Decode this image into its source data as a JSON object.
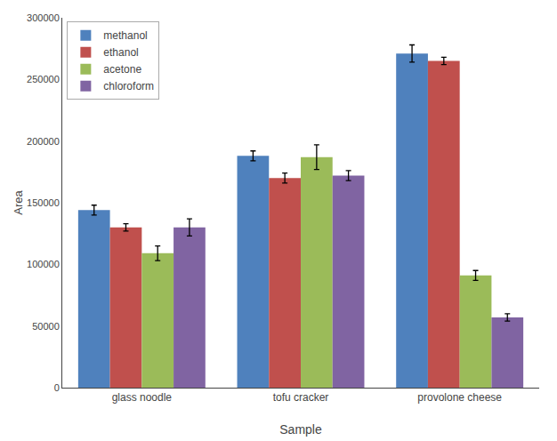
{
  "chart_data": {
    "type": "bar",
    "categories": [
      "glass noodle",
      "tofu cracker",
      "provolone cheese"
    ],
    "series": [
      {
        "name": "methanol",
        "color": "#4F81BD",
        "values": [
          144000,
          188000,
          271000
        ],
        "errors": [
          4000,
          4000,
          7000
        ]
      },
      {
        "name": "ethanol",
        "color": "#C0504D",
        "values": [
          130000,
          170000,
          265000
        ],
        "errors": [
          3000,
          4000,
          3000
        ]
      },
      {
        "name": "acetone",
        "color": "#9BBB59",
        "values": [
          109000,
          187000,
          91000
        ],
        "errors": [
          6000,
          10000,
          4000
        ]
      },
      {
        "name": "chloroform",
        "color": "#8064A2",
        "values": [
          130000,
          172000,
          57000
        ],
        "errors": [
          7000,
          4000,
          3000
        ]
      }
    ],
    "xlabel": "Sample",
    "ylabel": "Area",
    "ylim": [
      0,
      300000
    ],
    "yticks": [
      0,
      50000,
      100000,
      150000,
      200000,
      250000,
      300000
    ],
    "grid": false,
    "legend": "upper left"
  }
}
